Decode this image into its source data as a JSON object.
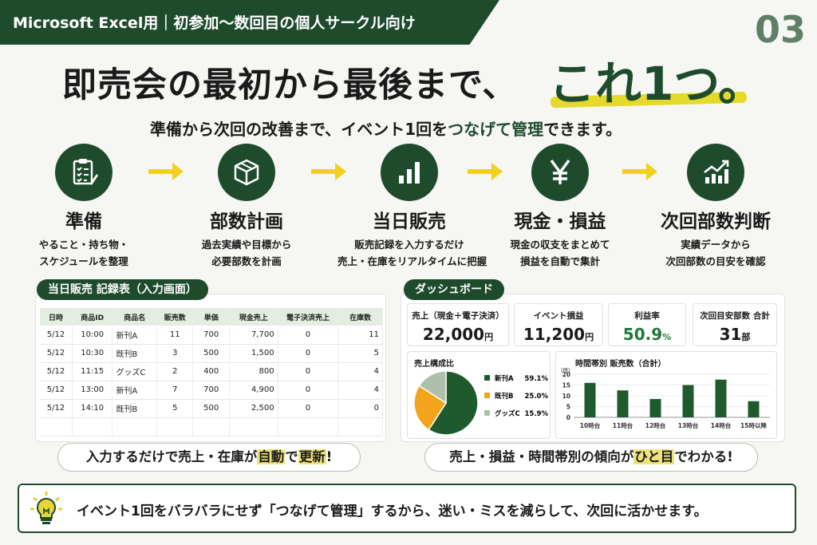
{
  "banner": {
    "text": "Microsoft Excel用｜初参加〜数回目の個人サークル向け",
    "page_number": "03"
  },
  "headline": {
    "main": "即売会の最初から最後まで、",
    "emphasis": "これ1つ。",
    "sub_before": "準備から次回の改善まで、イベント1回を",
    "sub_green": "つなげて管理",
    "sub_after": "できます。"
  },
  "steps": [
    {
      "icon": "clipboard-checklist-icon",
      "title": "準備",
      "desc1": "やること・持ち物・",
      "desc2": "スケジュールを整理"
    },
    {
      "icon": "box-icon",
      "title": "部数計画",
      "desc1": "過去実績や目標から",
      "desc2": "必要部数を計画"
    },
    {
      "icon": "bar-chart-icon",
      "title": "当日販売",
      "desc1": "販売記録を入力するだけ",
      "desc2": "売上・在庫をリアルタイムに把握"
    },
    {
      "icon": "yen-icon",
      "title": "現金・損益",
      "desc1": "現金の収支をまとめて",
      "desc2": "損益を自動で集計"
    },
    {
      "icon": "trend-chart-icon",
      "title": "次回部数判断",
      "desc1": "実績データから",
      "desc2": "次回部数の目安を確認"
    }
  ],
  "sales_record": {
    "label": "当日販売 記録表（入力画面）",
    "columns": [
      "日時",
      "商品ID",
      "商品名",
      "販売数",
      "単価",
      "現金売上",
      "電子決済売上",
      "在庫数"
    ],
    "rows": [
      [
        "5/12",
        "10:00",
        "新刊A",
        "11",
        "700",
        "7,700",
        "0",
        "11"
      ],
      [
        "5/12",
        "10:30",
        "既刊B",
        "3",
        "500",
        "1,500",
        "0",
        "5"
      ],
      [
        "5/12",
        "11:15",
        "グッズC",
        "2",
        "400",
        "800",
        "0",
        "4"
      ],
      [
        "5/12",
        "13:00",
        "新刊A",
        "7",
        "700",
        "4,900",
        "0",
        "4"
      ],
      [
        "5/12",
        "14:10",
        "既刊B",
        "5",
        "500",
        "2,500",
        "0",
        "0"
      ]
    ],
    "callout_pre": "入力するだけで売上・在庫が",
    "callout_hl1": "自動",
    "callout_mid": "で",
    "callout_hl2": "更新",
    "callout_post": "!"
  },
  "dashboard": {
    "label": "ダッシュボード",
    "kpis": [
      {
        "label": "売上（現金＋電子決済）",
        "value": "22,000",
        "unit": "円",
        "color": "#1a1a1a"
      },
      {
        "label": "イベント損益",
        "value": "11,200",
        "unit": "円",
        "color": "#1a1a1a"
      },
      {
        "label": "利益率",
        "value": "50.9",
        "unit": "%",
        "color": "#1f7a3a"
      },
      {
        "label": "次回目安部数 合計",
        "value": "31",
        "unit": "部",
        "color": "#1a1a1a"
      }
    ],
    "callout_pre": "売上・損益・時間帯別の傾向が",
    "callout_hl": "ひと目",
    "callout_post": "でわかる!"
  },
  "chart_data": [
    {
      "type": "pie",
      "title": "売上構成比",
      "categories": [
        "新刊A",
        "既刊B",
        "グッズC"
      ],
      "values": [
        59.1,
        25.0,
        15.9
      ],
      "value_labels": [
        "59.1%",
        "25.0%",
        "15.9%"
      ],
      "colors": [
        "#1f5a2e",
        "#f2a51c",
        "#aebfaa"
      ],
      "legend": "right"
    },
    {
      "type": "bar",
      "title": "時間帯別 販売数（合計）",
      "unit_label": "(冊)",
      "categories": [
        "10時台",
        "11時台",
        "12時台",
        "13時台",
        "14時台",
        "15時以降"
      ],
      "values": [
        16,
        12.5,
        8.5,
        15,
        17.5,
        7.5
      ],
      "y_ticks": [
        "0",
        "5",
        "10",
        "15",
        "20"
      ],
      "ylim": [
        0,
        20
      ],
      "color": "#1f5a2e"
    }
  ],
  "bottom": {
    "text": "イベント1回をバラバラにせず「つなげて管理」するから、迷い・ミスを減らして、次回に活かせます。"
  }
}
